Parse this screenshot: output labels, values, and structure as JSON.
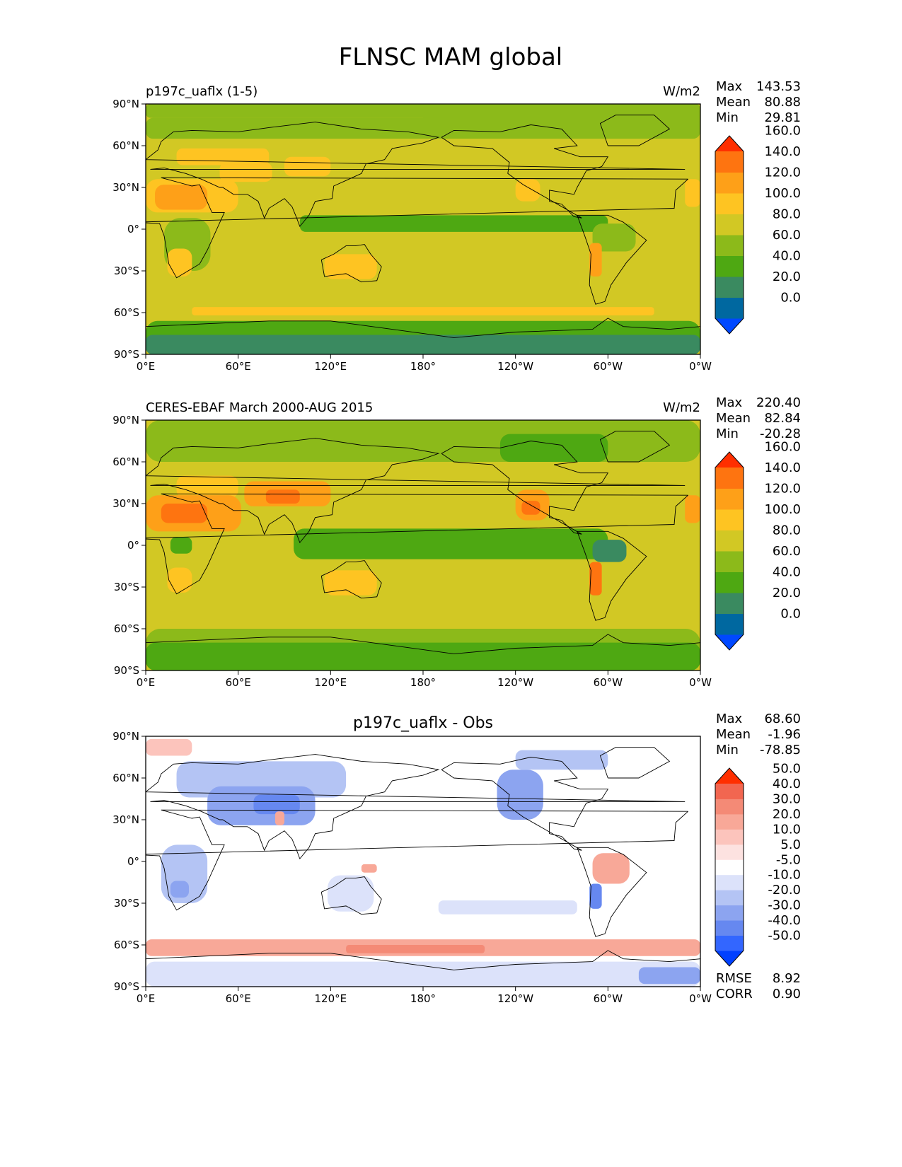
{
  "figure_title": "FLNSC MAM global",
  "colors": {
    "main": [
      "#0048ff",
      "#0068a0",
      "#3a8a60",
      "#4ea812",
      "#8cba1a",
      "#d2c824",
      "#fec422",
      "#fea018",
      "#fe7410",
      "#ff2f00"
    ],
    "diff": [
      "#0040ff",
      "#3366ff",
      "#6688f0",
      "#8ca4f0",
      "#b4c4f4",
      "#dce2fa",
      "#ffffff",
      "#fde2e0",
      "#fcc4bc",
      "#f8a898",
      "#f48a76",
      "#f26650",
      "#ff2f00"
    ],
    "coast": "#000000"
  },
  "chart_data": [
    {
      "type": "heatmap",
      "title": "",
      "left_label": "p197c_uaflx (1-5)",
      "units": "W/m2",
      "stats": {
        "max_label": "Max",
        "max": "143.53",
        "mean_label": "Mean",
        "mean": "80.88",
        "min_label": "Min",
        "min": "29.81"
      },
      "colorbar": {
        "levels": [
          "0.0",
          "20.0",
          "40.0",
          "60.0",
          "80.0",
          "100.0",
          "120.0",
          "140.0",
          "160.0"
        ],
        "palette": "main",
        "extend": "both"
      },
      "x_ticks": [
        "0°E",
        "60°E",
        "120°E",
        "180°",
        "120°W",
        "60°W",
        "0°W"
      ],
      "y_ticks": [
        "90°N",
        "60°N",
        "30°N",
        "0°",
        "30°S",
        "60°S",
        "90°S"
      ],
      "lon_range": [
        0,
        360
      ],
      "lat_range": [
        -90,
        90
      ],
      "regions": [
        {
          "lat": [
            90,
            80
          ],
          "lon": [
            0,
            360
          ],
          "level": 4
        },
        {
          "lat": [
            80,
            65
          ],
          "lon": [
            0,
            360
          ],
          "level": 4
        },
        {
          "lat": [
            88,
            66
          ],
          "lon": [
            180,
            360
          ],
          "level": 4
        },
        {
          "lat": [
            58,
            46
          ],
          "lon": [
            20,
            80
          ],
          "level": 6
        },
        {
          "lat": [
            52,
            38
          ],
          "lon": [
            90,
            120
          ],
          "level": 6
        },
        {
          "lat": [
            36,
            12
          ],
          "lon": [
            0,
            60
          ],
          "level": 6
        },
        {
          "lat": [
            32,
            14
          ],
          "lon": [
            6,
            40
          ],
          "level": 7
        },
        {
          "lat": [
            48,
            34
          ],
          "lon": [
            48,
            82
          ],
          "level": 6
        },
        {
          "lat": [
            10,
            -2
          ],
          "lon": [
            100,
            300
          ],
          "level": 3
        },
        {
          "lat": [
            8,
            -30
          ],
          "lon": [
            12,
            42
          ],
          "level": 4
        },
        {
          "lat": [
            -14,
            -34
          ],
          "lon": [
            14,
            30
          ],
          "level": 6
        },
        {
          "lat": [
            -18,
            -36
          ],
          "lon": [
            116,
            150
          ],
          "level": 6
        },
        {
          "lat": [
            36,
            20
          ],
          "lon": [
            240,
            256
          ],
          "level": 6
        },
        {
          "lat": [
            4,
            -16
          ],
          "lon": [
            290,
            318
          ],
          "level": 4
        },
        {
          "lat": [
            -10,
            -34
          ],
          "lon": [
            288,
            296
          ],
          "level": 7
        },
        {
          "lat": [
            36,
            16
          ],
          "lon": [
            350,
            360
          ],
          "level": 6
        },
        {
          "lat": [
            -56,
            -62
          ],
          "lon": [
            30,
            330
          ],
          "level": 6
        },
        {
          "lat": [
            -66,
            -90
          ],
          "lon": [
            0,
            360
          ],
          "level": 3
        },
        {
          "lat": [
            -76,
            -90
          ],
          "lon": [
            0,
            360
          ],
          "level": 2
        }
      ],
      "base_level": 5
    },
    {
      "type": "heatmap",
      "title": "",
      "left_label": "CERES-EBAF March 2000-AUG 2015",
      "units": "W/m2",
      "stats": {
        "max_label": "Max",
        "max": "220.40",
        "mean_label": "Mean",
        "mean": "82.84",
        "min_label": "Min",
        "min": "-20.28"
      },
      "colorbar": {
        "levels": [
          "0.0",
          "20.0",
          "40.0",
          "60.0",
          "80.0",
          "100.0",
          "120.0",
          "140.0",
          "160.0"
        ],
        "palette": "main",
        "extend": "both"
      },
      "x_ticks": [
        "0°E",
        "60°E",
        "120°E",
        "180°",
        "120°W",
        "60°W",
        "0°W"
      ],
      "y_ticks": [
        "90°N",
        "60°N",
        "30°N",
        "0°",
        "30°S",
        "60°S",
        "90°S"
      ],
      "lon_range": [
        0,
        360
      ],
      "lat_range": [
        -90,
        90
      ],
      "regions": [
        {
          "lat": [
            90,
            60
          ],
          "lon": [
            0,
            360
          ],
          "level": 4
        },
        {
          "lat": [
            80,
            60
          ],
          "lon": [
            230,
            300
          ],
          "level": 3
        },
        {
          "lat": [
            50,
            34
          ],
          "lon": [
            20,
            60
          ],
          "level": 6
        },
        {
          "lat": [
            36,
            10
          ],
          "lon": [
            0,
            62
          ],
          "level": 7
        },
        {
          "lat": [
            30,
            16
          ],
          "lon": [
            10,
            40
          ],
          "level": 8
        },
        {
          "lat": [
            46,
            28
          ],
          "lon": [
            64,
            120
          ],
          "level": 7
        },
        {
          "lat": [
            40,
            30
          ],
          "lon": [
            78,
            100
          ],
          "level": 8
        },
        {
          "lat": [
            12,
            -10
          ],
          "lon": [
            96,
            300
          ],
          "level": 3
        },
        {
          "lat": [
            6,
            -6
          ],
          "lon": [
            16,
            30
          ],
          "level": 3
        },
        {
          "lat": [
            -16,
            -34
          ],
          "lon": [
            14,
            30
          ],
          "level": 6
        },
        {
          "lat": [
            -18,
            -36
          ],
          "lon": [
            116,
            150
          ],
          "level": 6
        },
        {
          "lat": [
            40,
            18
          ],
          "lon": [
            240,
            262
          ],
          "level": 7
        },
        {
          "lat": [
            32,
            22
          ],
          "lon": [
            244,
            256
          ],
          "level": 8
        },
        {
          "lat": [
            4,
            -12
          ],
          "lon": [
            290,
            312
          ],
          "level": 2
        },
        {
          "lat": [
            -12,
            -36
          ],
          "lon": [
            288,
            296
          ],
          "level": 8
        },
        {
          "lat": [
            36,
            16
          ],
          "lon": [
            350,
            360
          ],
          "level": 7
        },
        {
          "lat": [
            -60,
            -90
          ],
          "lon": [
            0,
            360
          ],
          "level": 4
        },
        {
          "lat": [
            -70,
            -90
          ],
          "lon": [
            0,
            360
          ],
          "level": 3
        }
      ],
      "base_level": 5
    },
    {
      "type": "heatmap",
      "title": "p197c_uaflx - Obs",
      "left_label": "",
      "units": "",
      "stats": {
        "max_label": "Max",
        "max": "68.60",
        "mean_label": "Mean",
        "mean": "-1.96",
        "min_label": "Min",
        "min": "-78.85"
      },
      "extra_stats": {
        "rmse_label": "RMSE",
        "rmse": "8.92",
        "corr_label": "CORR",
        "corr": "0.90"
      },
      "colorbar": {
        "levels": [
          "-50.0",
          "-40.0",
          "-30.0",
          "-20.0",
          "-10.0",
          "-5.0",
          "5.0",
          "10.0",
          "20.0",
          "30.0",
          "40.0",
          "50.0"
        ],
        "palette": "diff",
        "extend": "both"
      },
      "x_ticks": [
        "0°E",
        "60°E",
        "120°E",
        "180°",
        "120°W",
        "60°W",
        "0°W"
      ],
      "y_ticks": [
        "90°N",
        "60°N",
        "30°N",
        "0°",
        "30°S",
        "60°S",
        "90°S"
      ],
      "lon_range": [
        0,
        360
      ],
      "lat_range": [
        -90,
        90
      ],
      "regions": [
        {
          "lat": [
            88,
            76
          ],
          "lon": [
            0,
            30
          ],
          "level": 8
        },
        {
          "lat": [
            72,
            46
          ],
          "lon": [
            20,
            130
          ],
          "level": 4
        },
        {
          "lat": [
            54,
            26
          ],
          "lon": [
            40,
            110
          ],
          "level": 3
        },
        {
          "lat": [
            48,
            34
          ],
          "lon": [
            70,
            100
          ],
          "level": 2
        },
        {
          "lat": [
            36,
            26
          ],
          "lon": [
            84,
            90
          ],
          "level": 9
        },
        {
          "lat": [
            12,
            -30
          ],
          "lon": [
            10,
            40
          ],
          "level": 4
        },
        {
          "lat": [
            -14,
            -26
          ],
          "lon": [
            16,
            28
          ],
          "level": 3
        },
        {
          "lat": [
            -10,
            -36
          ],
          "lon": [
            118,
            148
          ],
          "level": 5
        },
        {
          "lat": [
            -2,
            -8
          ],
          "lon": [
            140,
            150
          ],
          "level": 9
        },
        {
          "lat": [
            66,
            30
          ],
          "lon": [
            228,
            258
          ],
          "level": 3
        },
        {
          "lat": [
            6,
            -16
          ],
          "lon": [
            290,
            314
          ],
          "level": 9
        },
        {
          "lat": [
            -16,
            -34
          ],
          "lon": [
            288,
            296
          ],
          "level": 2
        },
        {
          "lat": [
            80,
            66
          ],
          "lon": [
            240,
            300
          ],
          "level": 4
        },
        {
          "lat": [
            -28,
            -38
          ],
          "lon": [
            190,
            280
          ],
          "level": 5
        },
        {
          "lat": [
            -56,
            -68
          ],
          "lon": [
            0,
            360
          ],
          "level": 9
        },
        {
          "lat": [
            -60,
            -66
          ],
          "lon": [
            130,
            220
          ],
          "level": 10
        },
        {
          "lat": [
            -72,
            -90
          ],
          "lon": [
            0,
            360
          ],
          "level": 5
        },
        {
          "lat": [
            -76,
            -88
          ],
          "lon": [
            320,
            360
          ],
          "level": 3
        }
      ],
      "base_level": 6
    }
  ]
}
